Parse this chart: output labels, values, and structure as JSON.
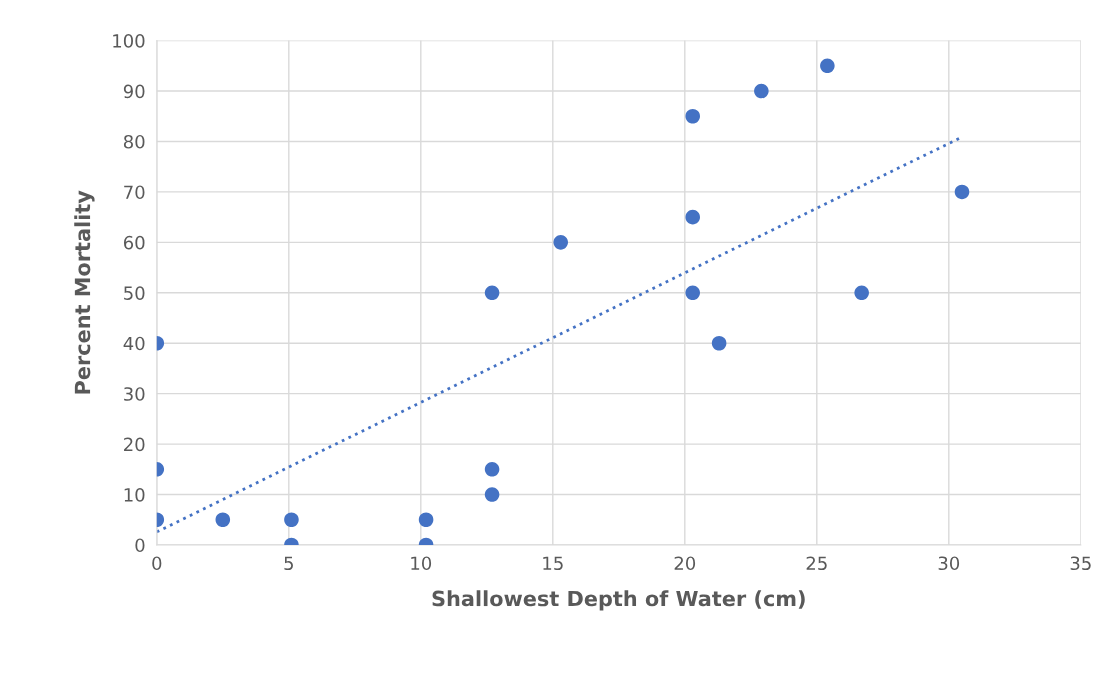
{
  "chart_data": {
    "type": "scatter",
    "xlabel": "Shallowest Depth of Water (cm)",
    "ylabel": "Percent Mortality",
    "xlim": [
      0,
      35
    ],
    "xticks": [
      0,
      5,
      10,
      15,
      20,
      25,
      30,
      35
    ],
    "ylim": [
      0,
      100
    ],
    "yticks": [
      0,
      10,
      20,
      30,
      40,
      50,
      60,
      70,
      80,
      90,
      100
    ],
    "grid": true,
    "marker": "circle",
    "series": [
      {
        "color": "#4472c4",
        "x": [
          0,
          0,
          0,
          2.5,
          5.1,
          5.1,
          10.2,
          10.2,
          12.7,
          12.7,
          12.7,
          15.3,
          20.3,
          20.3,
          20.3,
          21.3,
          22.9,
          25.4,
          26.7,
          30.5
        ],
        "values": [
          5,
          15,
          40,
          5,
          5,
          0,
          5,
          0,
          50,
          15,
          10,
          60,
          85,
          65,
          50,
          40,
          90,
          95,
          50,
          70
        ]
      },
      {
        "type": "line",
        "color": "#4472c4",
        "marker": "none",
        "line_style": "dotted",
        "x": [
          0,
          30.5
        ],
        "values": [
          2.6,
          80.9
        ]
      }
    ]
  }
}
